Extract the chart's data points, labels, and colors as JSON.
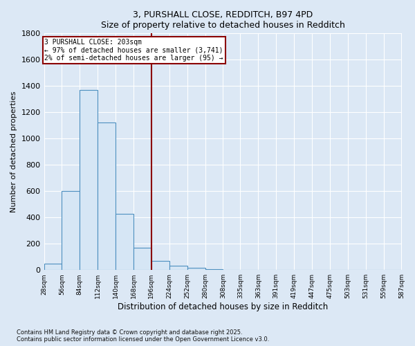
{
  "title_line1": "3, PURSHALL CLOSE, REDDITCH, B97 4PD",
  "title_line2": "Size of property relative to detached houses in Redditch",
  "xlabel": "Distribution of detached houses by size in Redditch",
  "ylabel": "Number of detached properties",
  "bar_edges": [
    28,
    56,
    84,
    112,
    140,
    168,
    196,
    224,
    252,
    280,
    308,
    335,
    363,
    391,
    419,
    447,
    475,
    503,
    531,
    559,
    587
  ],
  "bar_heights": [
    50,
    600,
    1370,
    1120,
    430,
    170,
    70,
    35,
    15,
    5,
    0,
    0,
    0,
    0,
    0,
    0,
    0,
    0,
    0,
    0
  ],
  "bar_color": "#d6e6f5",
  "bar_edge_color": "#4d8fbf",
  "property_line_x": 196,
  "property_line_color": "#8b0000",
  "annotation_text": "3 PURSHALL CLOSE: 203sqm\n← 97% of detached houses are smaller (3,741)\n2% of semi-detached houses are larger (95) →",
  "annotation_box_color": "#8b0000",
  "ylim": [
    0,
    1800
  ],
  "yticks": [
    0,
    200,
    400,
    600,
    800,
    1000,
    1200,
    1400,
    1600,
    1800
  ],
  "background_color": "#dce8f5",
  "grid_color": "#c8d8ea",
  "footer_text": "Contains HM Land Registry data © Crown copyright and database right 2025.\nContains public sector information licensed under the Open Government Licence v3.0.",
  "tick_labels": [
    "28sqm",
    "56sqm",
    "84sqm",
    "112sqm",
    "140sqm",
    "168sqm",
    "196sqm",
    "224sqm",
    "252sqm",
    "280sqm",
    "308sqm",
    "335sqm",
    "363sqm",
    "391sqm",
    "419sqm",
    "447sqm",
    "475sqm",
    "503sqm",
    "531sqm",
    "559sqm",
    "587sqm"
  ]
}
